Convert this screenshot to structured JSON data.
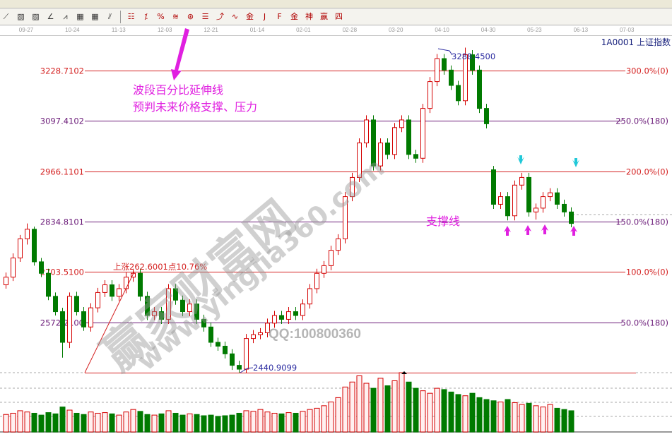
{
  "toolbar": {
    "row2_icons": [
      "line-tool-icon",
      "box-tool-icon",
      "hatch-tool-icon",
      "angle-tool-icon",
      "wave-tool-icon",
      "grid-tool-icon",
      "grid2-tool-icon",
      "parallel-tool-icon",
      "|",
      "gann-tool-icon",
      "percent-slope-icon",
      "percent-icon",
      "wave-percent-icon",
      "gold-circle-icon",
      "gold-lines-icon",
      "arrow-tool-icon",
      "sine-icon",
      "gold-icon",
      "j-lines-icon",
      "f-lines-icon",
      "gold-fan-icon",
      "god-lines-icon",
      "win-lines-icon",
      "four-lines-icon"
    ],
    "row2_glyphs": [
      "⟋",
      "▧",
      "▨",
      "∠",
      "⩘",
      "▦",
      "▦",
      "⫽",
      "|",
      "☷",
      "⁒",
      "%",
      "≋",
      "⊛",
      "☰",
      "⤴",
      "∿",
      "金",
      "J",
      "F",
      "金",
      "神",
      "赢",
      "四"
    ]
  },
  "date_axis": [
    "09-27",
    "10-24",
    "11-13",
    "12-03",
    "12-21",
    "01-14",
    "02-01",
    "02-28",
    "03-20",
    "04-10",
    "04-30",
    "05-23",
    "06-13",
    "07-03"
  ],
  "stock_name": "1A0001  上证指数",
  "annotations": {
    "note_line1": "波段百分比延伸线",
    "note_line2": "预判未来价格支撑、压力",
    "support": "支撑线",
    "rise": "上涨262.6001点10.76%",
    "low": "2440.9099",
    "high": "3288.4500",
    "qq": "QQ:100800360",
    "watermark_cn": "赢家财富网",
    "watermark_url": "www.yingjia360.com"
  },
  "colors": {
    "up": "#d40000",
    "down": "#007a00",
    "red_level": "#d42020",
    "purple_level": "#6a1a78",
    "note": "#e020e0",
    "cyan": "#20c8d8"
  },
  "chart_data": {
    "type": "candlestick",
    "title": "",
    "ylim": [
      2440.9099,
      3288.45
    ],
    "levels": [
      {
        "price": "3228.7102",
        "pct": "300.0%(0)",
        "color": "red"
      },
      {
        "price": "3097.4102",
        "pct": "250.0%(180)",
        "color": "purple"
      },
      {
        "price": "2966.1101",
        "pct": "200.0%(0)",
        "color": "red"
      },
      {
        "price": "2834.8101",
        "pct": "150.0%(180)",
        "color": "purple"
      },
      {
        "price": "2703.5100",
        "pct": "100.0%(0)",
        "color": "red"
      },
      {
        "price": "2572.2100",
        "pct": "50.0%(180)",
        "color": "purple"
      },
      {
        "price": "2440.9099",
        "pct": "",
        "color": "red"
      }
    ],
    "ohlc": [
      [
        2670,
        2702,
        2660,
        2690
      ],
      [
        2690,
        2752,
        2680,
        2740
      ],
      [
        2740,
        2800,
        2730,
        2790
      ],
      [
        2790,
        2830,
        2775,
        2815
      ],
      [
        2815,
        2822,
        2720,
        2730
      ],
      [
        2730,
        2740,
        2690,
        2700
      ],
      [
        2700,
        2712,
        2630,
        2640
      ],
      [
        2640,
        2650,
        2590,
        2600
      ],
      [
        2600,
        2610,
        2480,
        2520
      ],
      [
        2520,
        2650,
        2505,
        2640
      ],
      [
        2640,
        2652,
        2590,
        2600
      ],
      [
        2600,
        2612,
        2550,
        2560
      ],
      [
        2560,
        2622,
        2548,
        2610
      ],
      [
        2610,
        2662,
        2598,
        2650
      ],
      [
        2650,
        2682,
        2638,
        2670
      ],
      [
        2670,
        2682,
        2628,
        2640
      ],
      [
        2640,
        2672,
        2628,
        2660
      ],
      [
        2660,
        2702,
        2648,
        2690
      ],
      [
        2690,
        2712,
        2678,
        2700
      ],
      [
        2700,
        2712,
        2628,
        2640
      ],
      [
        2640,
        2652,
        2578,
        2590
      ],
      [
        2590,
        2612,
        2578,
        2600
      ],
      [
        2600,
        2612,
        2568,
        2580
      ],
      [
        2580,
        2672,
        2568,
        2660
      ],
      [
        2660,
        2672,
        2618,
        2630
      ],
      [
        2630,
        2642,
        2588,
        2600
      ],
      [
        2600,
        2632,
        2588,
        2620
      ],
      [
        2620,
        2632,
        2568,
        2580
      ],
      [
        2580,
        2592,
        2548,
        2560
      ],
      [
        2560,
        2572,
        2508,
        2520
      ],
      [
        2520,
        2532,
        2498,
        2510
      ],
      [
        2510,
        2522,
        2478,
        2490
      ],
      [
        2490,
        2502,
        2448,
        2460
      ],
      [
        2460,
        2472,
        2440.91,
        2450
      ],
      [
        2450,
        2542,
        2440.91,
        2530
      ],
      [
        2530,
        2552,
        2518,
        2540
      ],
      [
        2540,
        2557,
        2528,
        2545
      ],
      [
        2545,
        2582,
        2533,
        2570
      ],
      [
        2570,
        2602,
        2558,
        2590
      ],
      [
        2590,
        2602,
        2568,
        2580
      ],
      [
        2580,
        2612,
        2568,
        2600
      ],
      [
        2600,
        2612,
        2578,
        2590
      ],
      [
        2590,
        2632,
        2578,
        2620
      ],
      [
        2620,
        2672,
        2608,
        2660
      ],
      [
        2660,
        2712,
        2648,
        2700
      ],
      [
        2700,
        2732,
        2688,
        2720
      ],
      [
        2720,
        2772,
        2708,
        2760
      ],
      [
        2760,
        2802,
        2748,
        2790
      ],
      [
        2790,
        2912,
        2778,
        2900
      ],
      [
        2900,
        2962,
        2888,
        2950
      ],
      [
        2950,
        3052,
        2938,
        3040
      ],
      [
        3040,
        3112,
        3028,
        3100
      ],
      [
        3100,
        3112,
        2968,
        2980
      ],
      [
        2980,
        3052,
        2968,
        3040
      ],
      [
        3040,
        3052,
        2998,
        3010
      ],
      [
        3010,
        3092,
        2998,
        3080
      ],
      [
        3080,
        3112,
        3068,
        3100
      ],
      [
        3100,
        3112,
        2998,
        3010
      ],
      [
        3010,
        3022,
        2988,
        3000
      ],
      [
        3000,
        3142,
        2988,
        3130
      ],
      [
        3130,
        3212,
        3118,
        3200
      ],
      [
        3200,
        3272,
        3188,
        3260
      ],
      [
        3260,
        3272,
        3218,
        3230
      ],
      [
        3230,
        3242,
        3178,
        3190
      ],
      [
        3190,
        3202,
        3138,
        3150
      ],
      [
        3150,
        3288.45,
        3138,
        3270
      ],
      [
        3270,
        3282,
        3218,
        3230
      ],
      [
        3230,
        3242,
        3118,
        3130
      ],
      [
        3130,
        3142,
        3078,
        3090
      ],
      [
        2970,
        2980,
        2868,
        2880
      ],
      [
        2880,
        2912,
        2868,
        2900
      ],
      [
        2900,
        2912,
        2838,
        2850
      ],
      [
        2850,
        2942,
        2838,
        2930
      ],
      [
        2930,
        2962,
        2918,
        2950
      ],
      [
        2950,
        2962,
        2848,
        2860
      ],
      [
        2860,
        2882,
        2840,
        2870
      ],
      [
        2870,
        2912,
        2858,
        2900
      ],
      [
        2900,
        2922,
        2888,
        2910
      ],
      [
        2910,
        2922,
        2868,
        2880
      ],
      [
        2880,
        2892,
        2848,
        2860
      ],
      [
        2860,
        2872,
        2820,
        2830
      ]
    ],
    "volume": [
      28,
      30,
      34,
      32,
      30,
      27,
      31,
      29,
      40,
      35,
      30,
      28,
      32,
      30,
      31,
      29,
      27,
      32,
      36,
      33,
      28,
      27,
      29,
      34,
      30,
      27,
      29,
      28,
      26,
      27,
      25,
      26,
      27,
      30,
      34,
      33,
      36,
      32,
      30,
      29,
      31,
      30,
      33,
      36,
      38,
      42,
      48,
      55,
      72,
      80,
      90,
      78,
      70,
      86,
      74,
      82,
      95,
      80,
      70,
      66,
      62,
      70,
      68,
      64,
      60,
      58,
      62,
      55,
      52,
      50,
      48,
      52,
      47,
      44,
      46,
      42,
      40,
      44,
      38,
      36,
      34
    ]
  }
}
